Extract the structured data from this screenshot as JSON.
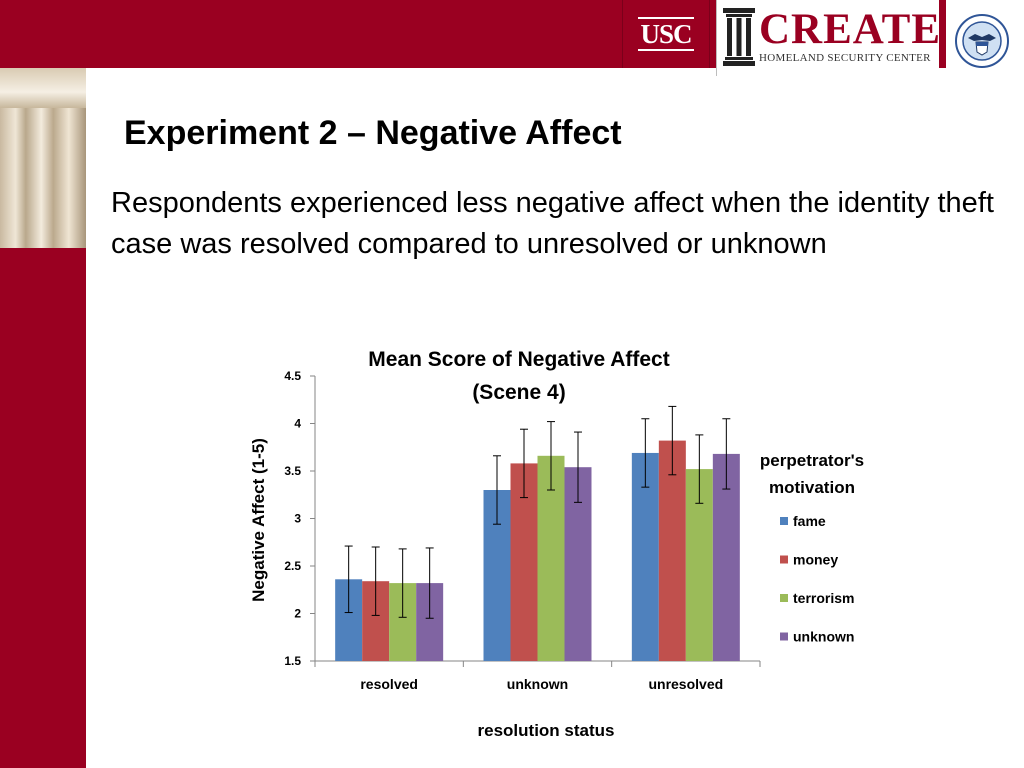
{
  "header": {
    "usc_logo_text": "USC",
    "create_logo_text": "CREATE",
    "create_subtitle": "HOMELAND SECURITY CENTER",
    "seal_icon": "dhs-seal-icon",
    "column_icon": "greek-column-icon"
  },
  "slide": {
    "title": "Experiment 2 – Negative Affect",
    "body": "Respondents experienced less negative affect when the identity theft case was resolved compared to unresolved or unknown"
  },
  "colors": {
    "brand": "#9a0021",
    "fame": "#4f81bd",
    "money": "#c0504d",
    "terrorism": "#9bbb59",
    "unknown": "#8064a2"
  },
  "chart_data": {
    "type": "bar",
    "title_lines": [
      "Mean Score of Negative Affect",
      "(Scene 4)"
    ],
    "xlabel": "resolution status",
    "ylabel": "Negative Affect (1-5)",
    "ylim": [
      1.5,
      4.5
    ],
    "yticks": [
      "1.5",
      "2",
      "2.5",
      "3",
      "3.5",
      "4",
      "4.5"
    ],
    "categories": [
      "resolved",
      "unknown",
      "unresolved"
    ],
    "legend_title_lines": [
      "perpetrator's",
      "motivation"
    ],
    "legend_position": "right",
    "grid": false,
    "series": [
      {
        "name": "fame",
        "color": "#4f81bd",
        "values": [
          2.36,
          3.3,
          3.69
        ],
        "errors": [
          0.35,
          0.36,
          0.36
        ]
      },
      {
        "name": "money",
        "color": "#c0504d",
        "values": [
          2.34,
          3.58,
          3.82
        ],
        "errors": [
          0.36,
          0.36,
          0.36
        ]
      },
      {
        "name": "terrorism",
        "color": "#9bbb59",
        "values": [
          2.32,
          3.66,
          3.52
        ],
        "errors": [
          0.36,
          0.36,
          0.36
        ]
      },
      {
        "name": "unknown",
        "color": "#8064a2",
        "values": [
          2.32,
          3.54,
          3.68
        ],
        "errors": [
          0.37,
          0.37,
          0.37
        ]
      }
    ]
  }
}
